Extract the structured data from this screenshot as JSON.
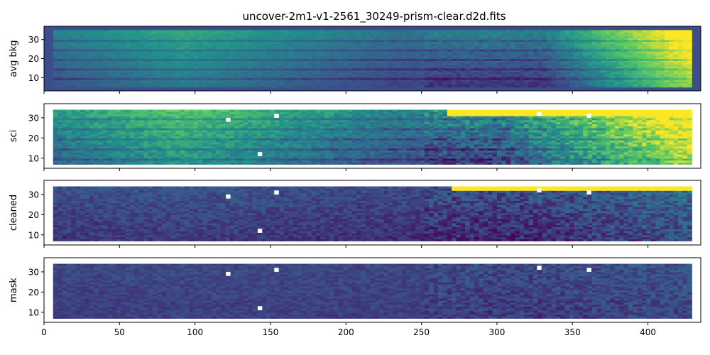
{
  "figure": {
    "title": "uncover-2m1-v1-2561_30249-prism-clear.d2d.fits"
  },
  "colors": {
    "background_fill": "#3b4d8a",
    "colormap": [
      "#440154",
      "#3b528b",
      "#21918c",
      "#5ec962",
      "#fde725"
    ]
  },
  "chart_data": {
    "type": "heatmap",
    "title": "uncover-2m1-v1-2561_30249-prism-clear.d2d.fits",
    "xlim": [
      0,
      435
    ],
    "x_ticks": [
      0,
      50,
      100,
      150,
      200,
      250,
      300,
      350,
      400
    ],
    "panels": [
      {
        "id": "avg-bkg",
        "ylabel": "avg bkg",
        "ylim": [
          3,
          37
        ],
        "y_ticks": [
          10,
          20,
          30
        ],
        "outer_background": true,
        "data_extent": {
          "x": [
            6,
            429
          ],
          "y": [
            5,
            35
          ]
        },
        "profile": {
          "start": 0.34,
          "x_peak": 90,
          "peak": 0.5,
          "x_dip": 230,
          "dip": 0.3,
          "x_rise": 330,
          "end": 1.05
        },
        "row_variation": 0.1,
        "stripes": [
          9,
          14,
          19,
          24,
          29
        ],
        "noise": 0.03,
        "holes": []
      },
      {
        "id": "sci",
        "ylabel": "sci",
        "ylim": [
          5,
          37
        ],
        "y_ticks": [
          10,
          20,
          30
        ],
        "outer_background": false,
        "data_extent": {
          "x": [
            6,
            429
          ],
          "y": [
            7,
            34
          ]
        },
        "profile": {
          "start": 0.42,
          "x_peak": 90,
          "peak": 0.62,
          "x_dip": 230,
          "dip": 0.35,
          "x_rise": 300,
          "end": 1.05
        },
        "row_variation": 0.12,
        "stripes": [
          9,
          14,
          19,
          24,
          29
        ],
        "noise": 0.08,
        "saturated_top": {
          "x_start": 265,
          "y_min": 31
        },
        "holes": [
          [
            122,
            29
          ],
          [
            154,
            31
          ],
          [
            143,
            12
          ],
          [
            328,
            32
          ],
          [
            361,
            31
          ]
        ]
      },
      {
        "id": "cleaned",
        "ylabel": "cleaned",
        "ylim": [
          5,
          37
        ],
        "y_ticks": [
          10,
          20,
          30
        ],
        "outer_background": false,
        "data_extent": {
          "x": [
            6,
            429
          ],
          "y": [
            7,
            34
          ]
        },
        "profile": {
          "start": 0.2,
          "x_peak": 90,
          "peak": 0.22,
          "x_dip": 230,
          "dip": 0.18,
          "x_rise": 320,
          "end": 0.3
        },
        "row_variation": 0.05,
        "stripes": [],
        "noise": 0.07,
        "saturated_top": {
          "x_start": 270,
          "y_min": 32
        },
        "holes": [
          [
            122,
            29
          ],
          [
            154,
            31
          ],
          [
            143,
            12
          ],
          [
            328,
            32
          ],
          [
            361,
            31
          ]
        ]
      },
      {
        "id": "mask",
        "ylabel": "mask",
        "ylim": [
          5,
          37
        ],
        "y_ticks": [
          10,
          20,
          30
        ],
        "outer_background": false,
        "data_extent": {
          "x": [
            6,
            429
          ],
          "y": [
            7,
            34
          ]
        },
        "profile": {
          "start": 0.2,
          "x_peak": 90,
          "peak": 0.21,
          "x_dip": 230,
          "dip": 0.2,
          "x_rise": 320,
          "end": 0.24
        },
        "row_variation": 0.02,
        "stripes": [],
        "noise": 0.05,
        "holes": [
          [
            122,
            29
          ],
          [
            154,
            31
          ],
          [
            143,
            12
          ],
          [
            328,
            32
          ],
          [
            361,
            31
          ]
        ]
      }
    ]
  }
}
